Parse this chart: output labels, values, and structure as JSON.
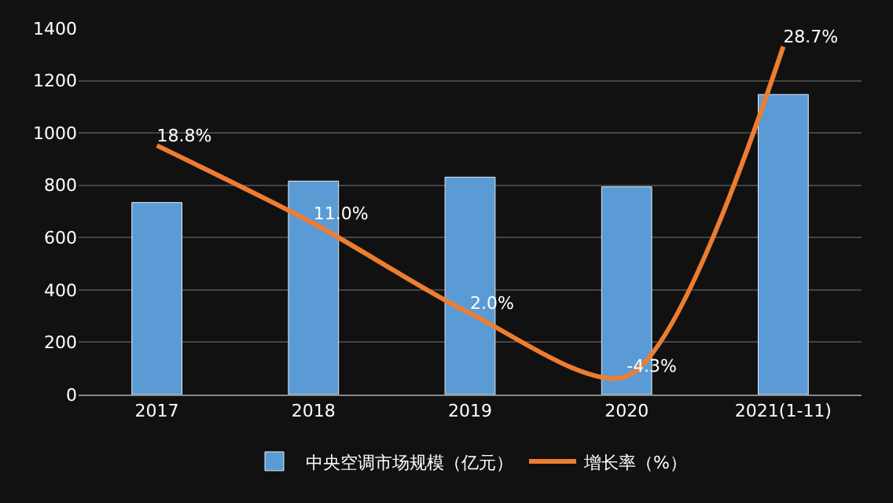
{
  "chart_data": {
    "type": "bar",
    "categories": [
      "2017",
      "2018",
      "2019",
      "2020",
      "2021(1-11)"
    ],
    "series": [
      {
        "name": "中央空调市场规模（亿元）",
        "color": "#5b9bd5",
        "values": [
          734,
          816,
          831,
          794,
          1147
        ]
      },
      {
        "name": "增长率（%）",
        "color": "#ed7d31",
        "type": "line",
        "axis": "y2",
        "values": [
          18.8,
          11.0,
          2.0,
          -4.3,
          28.7
        ],
        "value_labels": [
          "18.8%",
          "11.0%",
          "2.0%",
          "-4.3%",
          "28.7%"
        ]
      }
    ],
    "ylim": [
      0,
      1400
    ],
    "yticks": [
      0,
      200,
      400,
      600,
      800,
      1000,
      1200,
      1400
    ],
    "grid": "y",
    "legend": "bottom",
    "marker": "none"
  }
}
